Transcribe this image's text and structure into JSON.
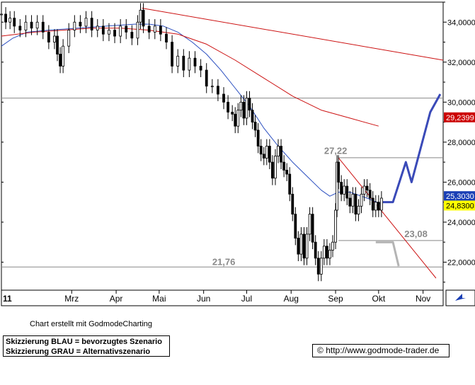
{
  "chart_data": {
    "type": "line",
    "title": "",
    "xlabel": "",
    "ylabel": "",
    "ylim": [
      20.6,
      35.0
    ],
    "x_ticks": [
      {
        "label": "11",
        "day": -3
      },
      {
        "label": "Mrz",
        "day": 46
      },
      {
        "label": "Apr",
        "day": 77
      },
      {
        "label": "Mai",
        "day": 107
      },
      {
        "label": "Jun",
        "day": 138
      },
      {
        "label": "Jul",
        "day": 168
      },
      {
        "label": "Aug",
        "day": 199
      },
      {
        "label": "Sep",
        "day": 230
      },
      {
        "label": "Okt",
        "day": 260
      },
      {
        "label": "Nov",
        "day": 291
      }
    ],
    "y_ticks": [
      "22,0000",
      "24,0000",
      "26,0000",
      "28,0000",
      "30,0000",
      "32,0000",
      "34,0000"
    ],
    "y_tick_values": [
      22,
      24,
      26,
      28,
      30,
      32,
      34
    ],
    "series": [
      {
        "kind": "price",
        "color": "#000000",
        "points": [
          [
            -3,
            34.4
          ],
          [
            0,
            34.0
          ],
          [
            3,
            34.2
          ],
          [
            6,
            33.8
          ],
          [
            10,
            33.6
          ],
          [
            14,
            34.0
          ],
          [
            18,
            33.7
          ],
          [
            22,
            34.0
          ],
          [
            26,
            33.5
          ],
          [
            30,
            33.0
          ],
          [
            34,
            33.3
          ],
          [
            36,
            32.4
          ],
          [
            38,
            31.8
          ],
          [
            40,
            32.8
          ],
          [
            44,
            33.6
          ],
          [
            48,
            34.0
          ],
          [
            52,
            33.8
          ],
          [
            56,
            34.2
          ],
          [
            60,
            33.6
          ],
          [
            64,
            33.8
          ],
          [
            68,
            33.4
          ],
          [
            72,
            33.6
          ],
          [
            76,
            33.3
          ],
          [
            80,
            33.8
          ],
          [
            84,
            33.5
          ],
          [
            88,
            33.2
          ],
          [
            92,
            34.0
          ],
          [
            94,
            34.6
          ],
          [
            96,
            33.8
          ],
          [
            100,
            33.5
          ],
          [
            104,
            33.8
          ],
          [
            108,
            33.4
          ],
          [
            112,
            33.0
          ],
          [
            116,
            31.8
          ],
          [
            120,
            32.3
          ],
          [
            124,
            31.6
          ],
          [
            128,
            32.2
          ],
          [
            132,
            31.8
          ],
          [
            136,
            31.6
          ],
          [
            140,
            30.8
          ],
          [
            144,
            30.8
          ],
          [
            148,
            30.4
          ],
          [
            152,
            30.0
          ],
          [
            155,
            29.5
          ],
          [
            158,
            29.4
          ],
          [
            160,
            28.8
          ],
          [
            162,
            29.6
          ],
          [
            164,
            30.0
          ],
          [
            166,
            29.2
          ],
          [
            168,
            30.2
          ],
          [
            170,
            29.6
          ],
          [
            172,
            29.0
          ],
          [
            174,
            28.6
          ],
          [
            176,
            27.8
          ],
          [
            178,
            27.4
          ],
          [
            180,
            27.2
          ],
          [
            182,
            27.8
          ],
          [
            184,
            27.0
          ],
          [
            186,
            26.2
          ],
          [
            188,
            27.3
          ],
          [
            190,
            27.8
          ],
          [
            192,
            27.0
          ],
          [
            194,
            26.6
          ],
          [
            196,
            26.4
          ],
          [
            198,
            25.4
          ],
          [
            200,
            24.4
          ],
          [
            202,
            23.2
          ],
          [
            204,
            22.4
          ],
          [
            206,
            23.4
          ],
          [
            208,
            22.2
          ],
          [
            210,
            23.4
          ],
          [
            212,
            24.4
          ],
          [
            214,
            23.0
          ],
          [
            216,
            22.2
          ],
          [
            218,
            21.4
          ],
          [
            220,
            22.2
          ],
          [
            222,
            22.8
          ],
          [
            224,
            22.2
          ],
          [
            226,
            22.6
          ],
          [
            228,
            23.0
          ],
          [
            230,
            24.6
          ],
          [
            231,
            27.0
          ],
          [
            232,
            26.0
          ],
          [
            234,
            25.4
          ],
          [
            236,
            25.8
          ],
          [
            238,
            25.2
          ],
          [
            240,
            24.8
          ],
          [
            242,
            25.4
          ],
          [
            244,
            24.4
          ],
          [
            246,
            24.8
          ],
          [
            248,
            25.4
          ],
          [
            250,
            25.8
          ],
          [
            252,
            25.6
          ],
          [
            254,
            25.2
          ],
          [
            256,
            24.6
          ],
          [
            258,
            25.0
          ],
          [
            260,
            24.6
          ],
          [
            262,
            25.2
          ]
        ]
      },
      {
        "kind": "sma-blue",
        "color": "#2b4fc0",
        "points": [
          [
            -3,
            32.8
          ],
          [
            5,
            33.2
          ],
          [
            15,
            33.5
          ],
          [
            30,
            33.6
          ],
          [
            50,
            33.7
          ],
          [
            70,
            33.8
          ],
          [
            90,
            33.9
          ],
          [
            100,
            33.9
          ],
          [
            110,
            33.8
          ],
          [
            120,
            33.5
          ],
          [
            130,
            33.0
          ],
          [
            140,
            32.4
          ],
          [
            150,
            31.6
          ],
          [
            160,
            30.7
          ],
          [
            170,
            29.8
          ],
          [
            180,
            28.7
          ],
          [
            190,
            27.8
          ],
          [
            200,
            27.0
          ],
          [
            210,
            26.3
          ],
          [
            220,
            25.6
          ],
          [
            226,
            25.3
          ],
          [
            232,
            25.5
          ],
          [
            240,
            25.5
          ],
          [
            252,
            25.2
          ],
          [
            262,
            24.9
          ]
        ]
      },
      {
        "kind": "sma-red",
        "color": "#cc1111",
        "points": [
          [
            -3,
            33.3
          ],
          [
            20,
            33.5
          ],
          [
            40,
            33.6
          ],
          [
            60,
            33.7
          ],
          [
            80,
            33.7
          ],
          [
            100,
            33.6
          ],
          [
            120,
            33.4
          ],
          [
            140,
            32.9
          ],
          [
            160,
            32.1
          ],
          [
            180,
            31.2
          ],
          [
            200,
            30.3
          ],
          [
            220,
            29.6
          ],
          [
            240,
            29.2
          ],
          [
            260,
            28.8
          ]
        ]
      },
      {
        "kind": "trendline-upper",
        "color": "#cc1111",
        "points": [
          [
            95,
            34.7
          ],
          [
            305,
            32.1
          ]
        ]
      },
      {
        "kind": "trendline-falling",
        "color": "#cc1111",
        "points": [
          [
            232,
            27.22
          ],
          [
            300,
            21.2
          ]
        ]
      },
      {
        "kind": "scenario-blue",
        "color": "#3a4ab8",
        "points": [
          [
            263,
            25.0
          ],
          [
            270,
            25.0
          ],
          [
            279,
            27.0
          ],
          [
            283,
            26.0
          ],
          [
            296,
            29.5
          ],
          [
            303,
            30.4
          ]
        ]
      },
      {
        "kind": "scenario-grey",
        "color": "#b4b4b4",
        "points": [
          [
            258,
            23.0
          ],
          [
            270,
            23.0
          ],
          [
            274,
            21.8
          ]
        ]
      }
    ],
    "horizontal_lines": [
      {
        "value": 30.2,
        "color": "#888888",
        "from": -3,
        "to": 305
      },
      {
        "value": 27.22,
        "color": "#888888",
        "from": 232,
        "to": 305,
        "label": "27,22",
        "label_day": 222,
        "label_value": 27.55
      },
      {
        "value": 23.08,
        "color": "#888888",
        "from": 232,
        "to": 305,
        "label": "23,08",
        "label_day": 278,
        "label_value": 23.4
      },
      {
        "value": 21.76,
        "color": "#888888",
        "from": -3,
        "to": 305,
        "label": "21,76",
        "label_day": 144,
        "label_value": 22.0
      }
    ],
    "value_badges": [
      {
        "label": "29,2399",
        "value": 29.24,
        "bg": "#cc0000",
        "fg": "#ffffff"
      },
      {
        "label": "25,3030",
        "value": 25.3,
        "bg": "#1a3fb5",
        "fg": "#ffffff"
      },
      {
        "label": "24,8300",
        "value": 24.83,
        "bg": "#ffff00",
        "fg": "#000000"
      }
    ]
  },
  "footer": {
    "credit": "Chart erstellt mit GodmodeCharting",
    "scenario_blue": "Skizzierung BLAU = bevorzugtes Szenario",
    "scenario_grey": "Skizzierung GRAU = Alternativszenario",
    "copyright_symbol": "©",
    "url": "http://www.godmode-trader.de"
  }
}
